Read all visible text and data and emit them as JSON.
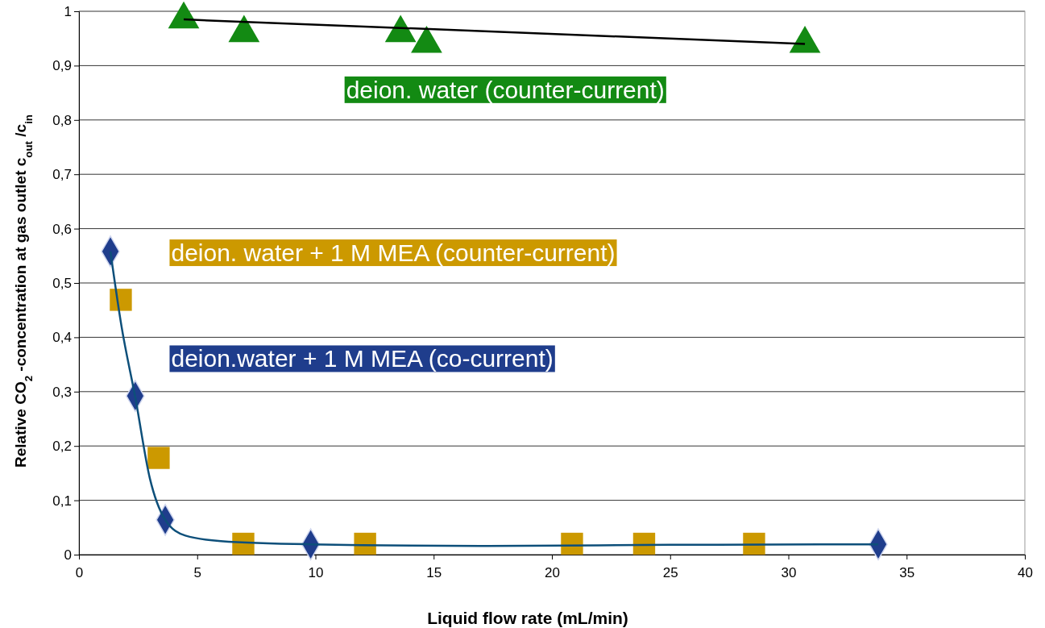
{
  "chart_data": {
    "type": "scatter",
    "xlabel": "Liquid flow rate (mL/min)",
    "ylabel": "Relative CO$_{2}$ -concentration at gas outlet  c$_{out}$ /c$_{in}$",
    "xlim": [
      0,
      40
    ],
    "xticks": [
      0,
      5,
      10,
      15,
      20,
      25,
      30,
      35,
      40
    ],
    "ylim": [
      0,
      1
    ],
    "yticks": [
      0,
      {
        "value": 0.1,
        "label": "0,1"
      },
      {
        "value": 0.2,
        "label": "0,2"
      },
      {
        "value": 0.3,
        "label": "0,3"
      },
      {
        "value": 0.4,
        "label": "0,4"
      },
      {
        "value": 0.5,
        "label": "0,5"
      },
      {
        "value": 0.6,
        "label": "0,6"
      },
      {
        "value": 0.7,
        "label": "0,7"
      },
      {
        "value": 0.8,
        "label": "0,8"
      },
      {
        "value": 0.9,
        "label": "0,9"
      },
      1
    ],
    "grid": "y",
    "series": [
      {
        "name": "deion. water (counter-current)",
        "marker": "triangle",
        "color": "#138a13",
        "x": [
          4.43,
          6.98,
          13.6,
          14.7,
          30.7
        ],
        "values": [
          0.985,
          0.96,
          0.96,
          0.94,
          0.94
        ]
      },
      {
        "type": "line",
        "marker": "none",
        "color": "#000000",
        "x": [
          4.43,
          30.7
        ],
        "values": [
          0.985,
          0.94
        ]
      },
      {
        "name": "deion. water + 1 M MEA (counter-current)",
        "marker": "square",
        "color": "#cc9900",
        "x": [
          1.77,
          3.37,
          6.95,
          12.1,
          20.85,
          23.9,
          28.55
        ],
        "values": [
          0.469,
          0.178,
          0.02,
          0.02,
          0.02,
          0.02,
          0.02
        ]
      },
      {
        "name": "deion.water + 1 M MEA (co-current)",
        "marker": "diamond",
        "color": "#1f3d8c",
        "x": [
          1.33,
          2.38,
          3.65,
          9.8,
          33.8
        ],
        "values": [
          0.558,
          0.292,
          0.064,
          0.019,
          0.019
        ]
      },
      {
        "type": "line",
        "marker": "none",
        "color": "#0d4f7a",
        "x": [
          1.33,
          1.8,
          2.38,
          3.0,
          3.65,
          4.5,
          6,
          9.8,
          17,
          25,
          33.8
        ],
        "values": [
          0.558,
          0.42,
          0.29,
          0.14,
          0.064,
          0.035,
          0.025,
          0.019,
          0.016,
          0.018,
          0.019
        ]
      }
    ]
  }
}
